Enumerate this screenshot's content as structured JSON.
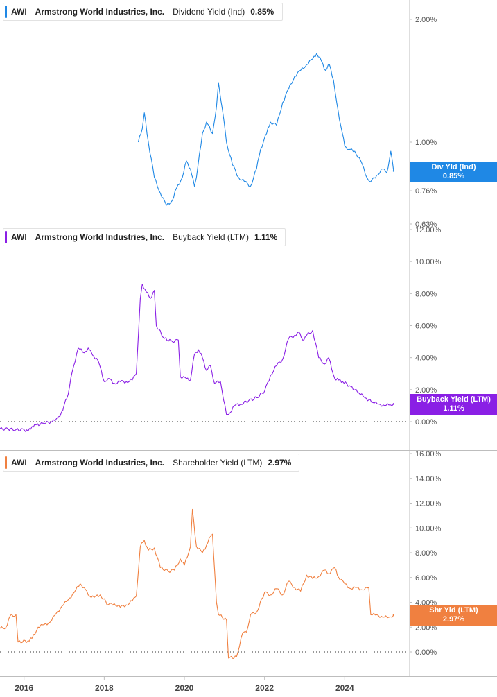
{
  "chart_data": [
    {
      "type": "line",
      "ticker": "AWI",
      "company": "Armstrong World Industries, Inc.",
      "metric": "Dividend Yield (Ind)",
      "current_value": "0.85%",
      "tag_label": "Div Yld (Ind)",
      "tag_value": "0.85%",
      "color": "#1f88e5",
      "y_scale": "log",
      "ylim": [
        0.63,
        2.2
      ],
      "y_ticks": [
        {
          "value": 2.0,
          "label": "2.00%"
        },
        {
          "value": 1.0,
          "label": "1.00%"
        },
        {
          "value": 0.88,
          "label": "0.88%"
        },
        {
          "value": 0.76,
          "label": "0.76%"
        },
        {
          "value": 0.63,
          "label": "0.63%"
        }
      ],
      "zero_line": false,
      "series": [
        {
          "x": [
            2018.85,
            2018.95,
            2019.0,
            2019.1,
            2019.25,
            2019.4,
            2019.55,
            2019.7,
            2019.8,
            2019.95,
            2020.05,
            2020.15,
            2020.25,
            2020.3,
            2020.45,
            2020.55,
            2020.7,
            2020.8,
            2020.85,
            2020.95,
            2021.05,
            2021.2,
            2021.35,
            2021.5,
            2021.65,
            2021.8,
            2021.9,
            2022.05,
            2022.15,
            2022.3,
            2022.45,
            2022.6,
            2022.75,
            2022.9,
            2023.05,
            2023.2,
            2023.3,
            2023.42,
            2023.52,
            2023.62,
            2023.72,
            2023.8,
            2023.9,
            2024.0,
            2024.1,
            2024.25,
            2024.4,
            2024.55,
            2024.65,
            2024.8,
            2024.95,
            2025.05,
            2025.15,
            2025.22
          ],
          "y": [
            1.0,
            1.08,
            1.18,
            1.0,
            0.82,
            0.75,
            0.7,
            0.72,
            0.77,
            0.82,
            0.9,
            0.86,
            0.78,
            0.82,
            1.05,
            1.12,
            1.05,
            1.22,
            1.4,
            1.2,
            1.0,
            0.88,
            0.82,
            0.8,
            0.78,
            0.86,
            0.96,
            1.05,
            1.12,
            1.1,
            1.25,
            1.35,
            1.45,
            1.5,
            1.55,
            1.6,
            1.65,
            1.58,
            1.5,
            1.55,
            1.42,
            1.25,
            1.1,
            0.98,
            0.96,
            0.95,
            0.9,
            0.82,
            0.8,
            0.83,
            0.86,
            0.84,
            0.95,
            0.85
          ]
        }
      ]
    },
    {
      "type": "line",
      "ticker": "AWI",
      "company": "Armstrong World Industries, Inc.",
      "metric": "Buyback Yield (LTM)",
      "current_value": "1.11%",
      "tag_label": "Buyback Yield (LTM)",
      "tag_value": "1.11%",
      "color": "#8a1fe5",
      "y_scale": "linear",
      "ylim": [
        -1.0,
        12.2
      ],
      "y_ticks": [
        {
          "value": 12,
          "label": "12.00%"
        },
        {
          "value": 10,
          "label": "10.00%"
        },
        {
          "value": 8,
          "label": "8.00%"
        },
        {
          "value": 6,
          "label": "6.00%"
        },
        {
          "value": 4,
          "label": "4.00%"
        },
        {
          "value": 2,
          "label": "2.00%"
        },
        {
          "value": 0,
          "label": "0.00%"
        }
      ],
      "zero_line": true,
      "series": [
        {
          "x": [
            2015.4,
            2015.6,
            2015.8,
            2016.0,
            2016.1,
            2016.2,
            2016.3,
            2016.5,
            2016.7,
            2016.85,
            2016.9,
            2017.1,
            2017.2,
            2017.35,
            2017.5,
            2017.6,
            2017.7,
            2017.85,
            2018.0,
            2018.1,
            2018.25,
            2018.4,
            2018.55,
            2018.7,
            2018.8,
            2018.9,
            2018.95,
            2019.05,
            2019.15,
            2019.25,
            2019.3,
            2019.5,
            2019.7,
            2019.85,
            2019.9,
            2020.05,
            2020.15,
            2020.25,
            2020.35,
            2020.45,
            2020.55,
            2020.65,
            2020.75,
            2020.9,
            2021.05,
            2021.1,
            2021.25,
            2021.4,
            2021.6,
            2021.8,
            2022.0,
            2022.15,
            2022.3,
            2022.45,
            2022.6,
            2022.75,
            2022.85,
            2022.95,
            2023.05,
            2023.2,
            2023.35,
            2023.5,
            2023.6,
            2023.75,
            2023.85,
            2023.95,
            2024.15,
            2024.35,
            2024.5,
            2024.7,
            2024.85,
            2025.0,
            2025.1,
            2025.22
          ],
          "y": [
            -0.45,
            -0.45,
            -0.5,
            -0.5,
            -0.6,
            -0.3,
            -0.2,
            -0.1,
            0.0,
            0.3,
            0.35,
            1.7,
            3.1,
            4.6,
            4.3,
            4.6,
            4.2,
            3.8,
            2.5,
            2.7,
            2.4,
            2.5,
            2.5,
            2.6,
            3.0,
            7.7,
            8.6,
            8.1,
            7.7,
            8.2,
            6.0,
            5.2,
            5.0,
            5.1,
            2.8,
            2.7,
            2.6,
            4.2,
            4.5,
            4.0,
            3.2,
            3.5,
            2.4,
            2.5,
            0.45,
            0.45,
            1.0,
            1.1,
            1.3,
            1.5,
            1.9,
            2.9,
            3.5,
            3.9,
            5.2,
            5.4,
            5.6,
            5.1,
            5.4,
            5.7,
            4.0,
            3.6,
            4.0,
            2.7,
            2.6,
            2.5,
            2.2,
            1.8,
            1.5,
            1.2,
            1.1,
            1.0,
            1.05,
            1.11
          ]
        }
      ]
    },
    {
      "type": "line",
      "ticker": "AWI",
      "company": "Armstrong World Industries, Inc.",
      "metric": "Shareholder Yield (LTM)",
      "current_value": "2.97%",
      "tag_label": "Shr Yld (LTM)",
      "tag_value": "2.97%",
      "color": "#f08040",
      "y_scale": "linear",
      "ylim": [
        -1.3,
        16.4
      ],
      "y_ticks": [
        {
          "value": 16,
          "label": "16.00%"
        },
        {
          "value": 14,
          "label": "14.00%"
        },
        {
          "value": 12,
          "label": "12.00%"
        },
        {
          "value": 10,
          "label": "10.00%"
        },
        {
          "value": 8,
          "label": "8.00%"
        },
        {
          "value": 6,
          "label": "6.00%"
        },
        {
          "value": 4,
          "label": "4.00%"
        },
        {
          "value": 2,
          "label": "2.00%"
        },
        {
          "value": 0,
          "label": "0.00%"
        }
      ],
      "zero_line": true,
      "series": [
        {
          "x": [
            2015.4,
            2015.55,
            2015.65,
            2015.8,
            2015.85,
            2016.1,
            2016.2,
            2016.35,
            2016.5,
            2016.65,
            2016.8,
            2016.95,
            2017.1,
            2017.25,
            2017.4,
            2017.5,
            2017.6,
            2017.75,
            2017.9,
            2018.1,
            2018.25,
            2018.4,
            2018.55,
            2018.7,
            2018.8,
            2018.9,
            2019.0,
            2019.1,
            2019.25,
            2019.4,
            2019.6,
            2019.75,
            2019.9,
            2020.0,
            2020.15,
            2020.2,
            2020.3,
            2020.45,
            2020.55,
            2020.65,
            2020.7,
            2020.8,
            2020.85,
            2021.05,
            2021.1,
            2021.3,
            2021.45,
            2021.55,
            2021.65,
            2021.8,
            2022.0,
            2022.15,
            2022.3,
            2022.45,
            2022.6,
            2022.75,
            2022.9,
            2023.05,
            2023.2,
            2023.35,
            2023.5,
            2023.6,
            2023.75,
            2023.85,
            2024.0,
            2024.15,
            2024.3,
            2024.45,
            2024.6,
            2024.65,
            2024.8,
            2024.95,
            2025.1,
            2025.22
          ],
          "y": [
            1.9,
            2.0,
            2.9,
            3.0,
            0.8,
            0.9,
            1.1,
            2.0,
            2.2,
            2.4,
            3.1,
            3.7,
            4.2,
            4.8,
            5.5,
            5.2,
            4.6,
            4.4,
            4.6,
            3.8,
            3.9,
            3.6,
            3.8,
            4.1,
            4.5,
            8.5,
            9.0,
            8.2,
            8.4,
            6.8,
            6.5,
            6.6,
            7.5,
            7.0,
            8.5,
            11.5,
            8.5,
            8.0,
            8.6,
            9.3,
            9.5,
            4.0,
            3.0,
            2.6,
            -0.5,
            -0.4,
            1.5,
            1.6,
            3.0,
            3.2,
            4.8,
            4.6,
            5.1,
            4.6,
            5.7,
            5.2,
            4.9,
            6.2,
            5.9,
            6.1,
            6.6,
            6.3,
            6.8,
            6.0,
            5.5,
            5.1,
            5.2,
            5.0,
            5.2,
            3.0,
            3.0,
            2.8,
            2.8,
            2.97
          ]
        }
      ]
    }
  ],
  "x_axis": {
    "ticks": [
      {
        "value": 2016,
        "label": "2016"
      },
      {
        "value": 2018,
        "label": "2018"
      },
      {
        "value": 2020,
        "label": "2020"
      },
      {
        "value": 2022,
        "label": "2022"
      },
      {
        "value": 2024,
        "label": "2024"
      }
    ],
    "range": [
      2015.4,
      2025.62
    ]
  }
}
